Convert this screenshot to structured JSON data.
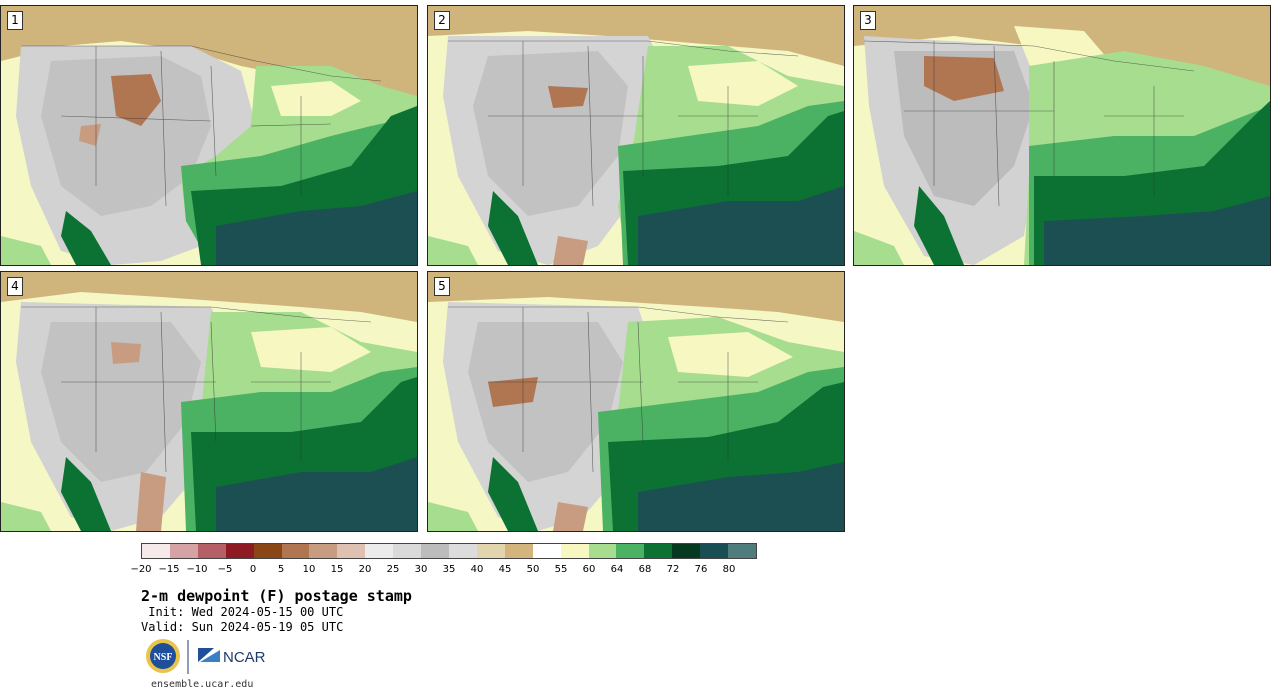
{
  "figure": {
    "title": "2-m dewpoint (F) postage stamp",
    "init_label": " Init: Wed 2024-05-15 00 UTC",
    "valid_label": "Valid: Sun 2024-05-19 05 UTC",
    "url": "ensemble.ucar.edu"
  },
  "logos": {
    "nsf_text": "NSF",
    "ncar_text": "NCAR"
  },
  "panels": [
    {
      "label": "1"
    },
    {
      "label": "2"
    },
    {
      "label": "3"
    },
    {
      "label": "4"
    },
    {
      "label": "5"
    }
  ],
  "colorbar": {
    "units": "F",
    "ticks": [
      "−20",
      "−15",
      "−10",
      "−5",
      "0",
      "5",
      "10",
      "15",
      "20",
      "25",
      "30",
      "35",
      "40",
      "45",
      "50",
      "55",
      "60",
      "64",
      "68",
      "72",
      "76",
      "80"
    ],
    "colors": [
      "#f6e9ea",
      "#d5a3a6",
      "#b46066",
      "#8e1a24",
      "#8a4614",
      "#b07652",
      "#c89c80",
      "#dec1b0",
      "#ececec",
      "#dadada",
      "#bcbcbc",
      "#dcdcdc",
      "#e2d4ac",
      "#d2b47c",
      "#ffffff",
      "#f7f7c2",
      "#a6dd8e",
      "#4cb263",
      "#0c7233",
      "#063a20",
      "#1a4e55",
      "#4f7d7e"
    ]
  },
  "palette": {
    "ocean_gulf": "#1c4f52",
    "ocean_atlantic_near": "#0c6e33",
    "ocean_pacific": "#f5f7c4",
    "canada_land": "#cfb47c",
    "dry_west_gray": "#bcbcbc",
    "light_gray": "#dcdcdc",
    "moist_green": "#4cb263",
    "light_green": "#a6dd8e",
    "pale_yellow": "#f7f7c2"
  }
}
